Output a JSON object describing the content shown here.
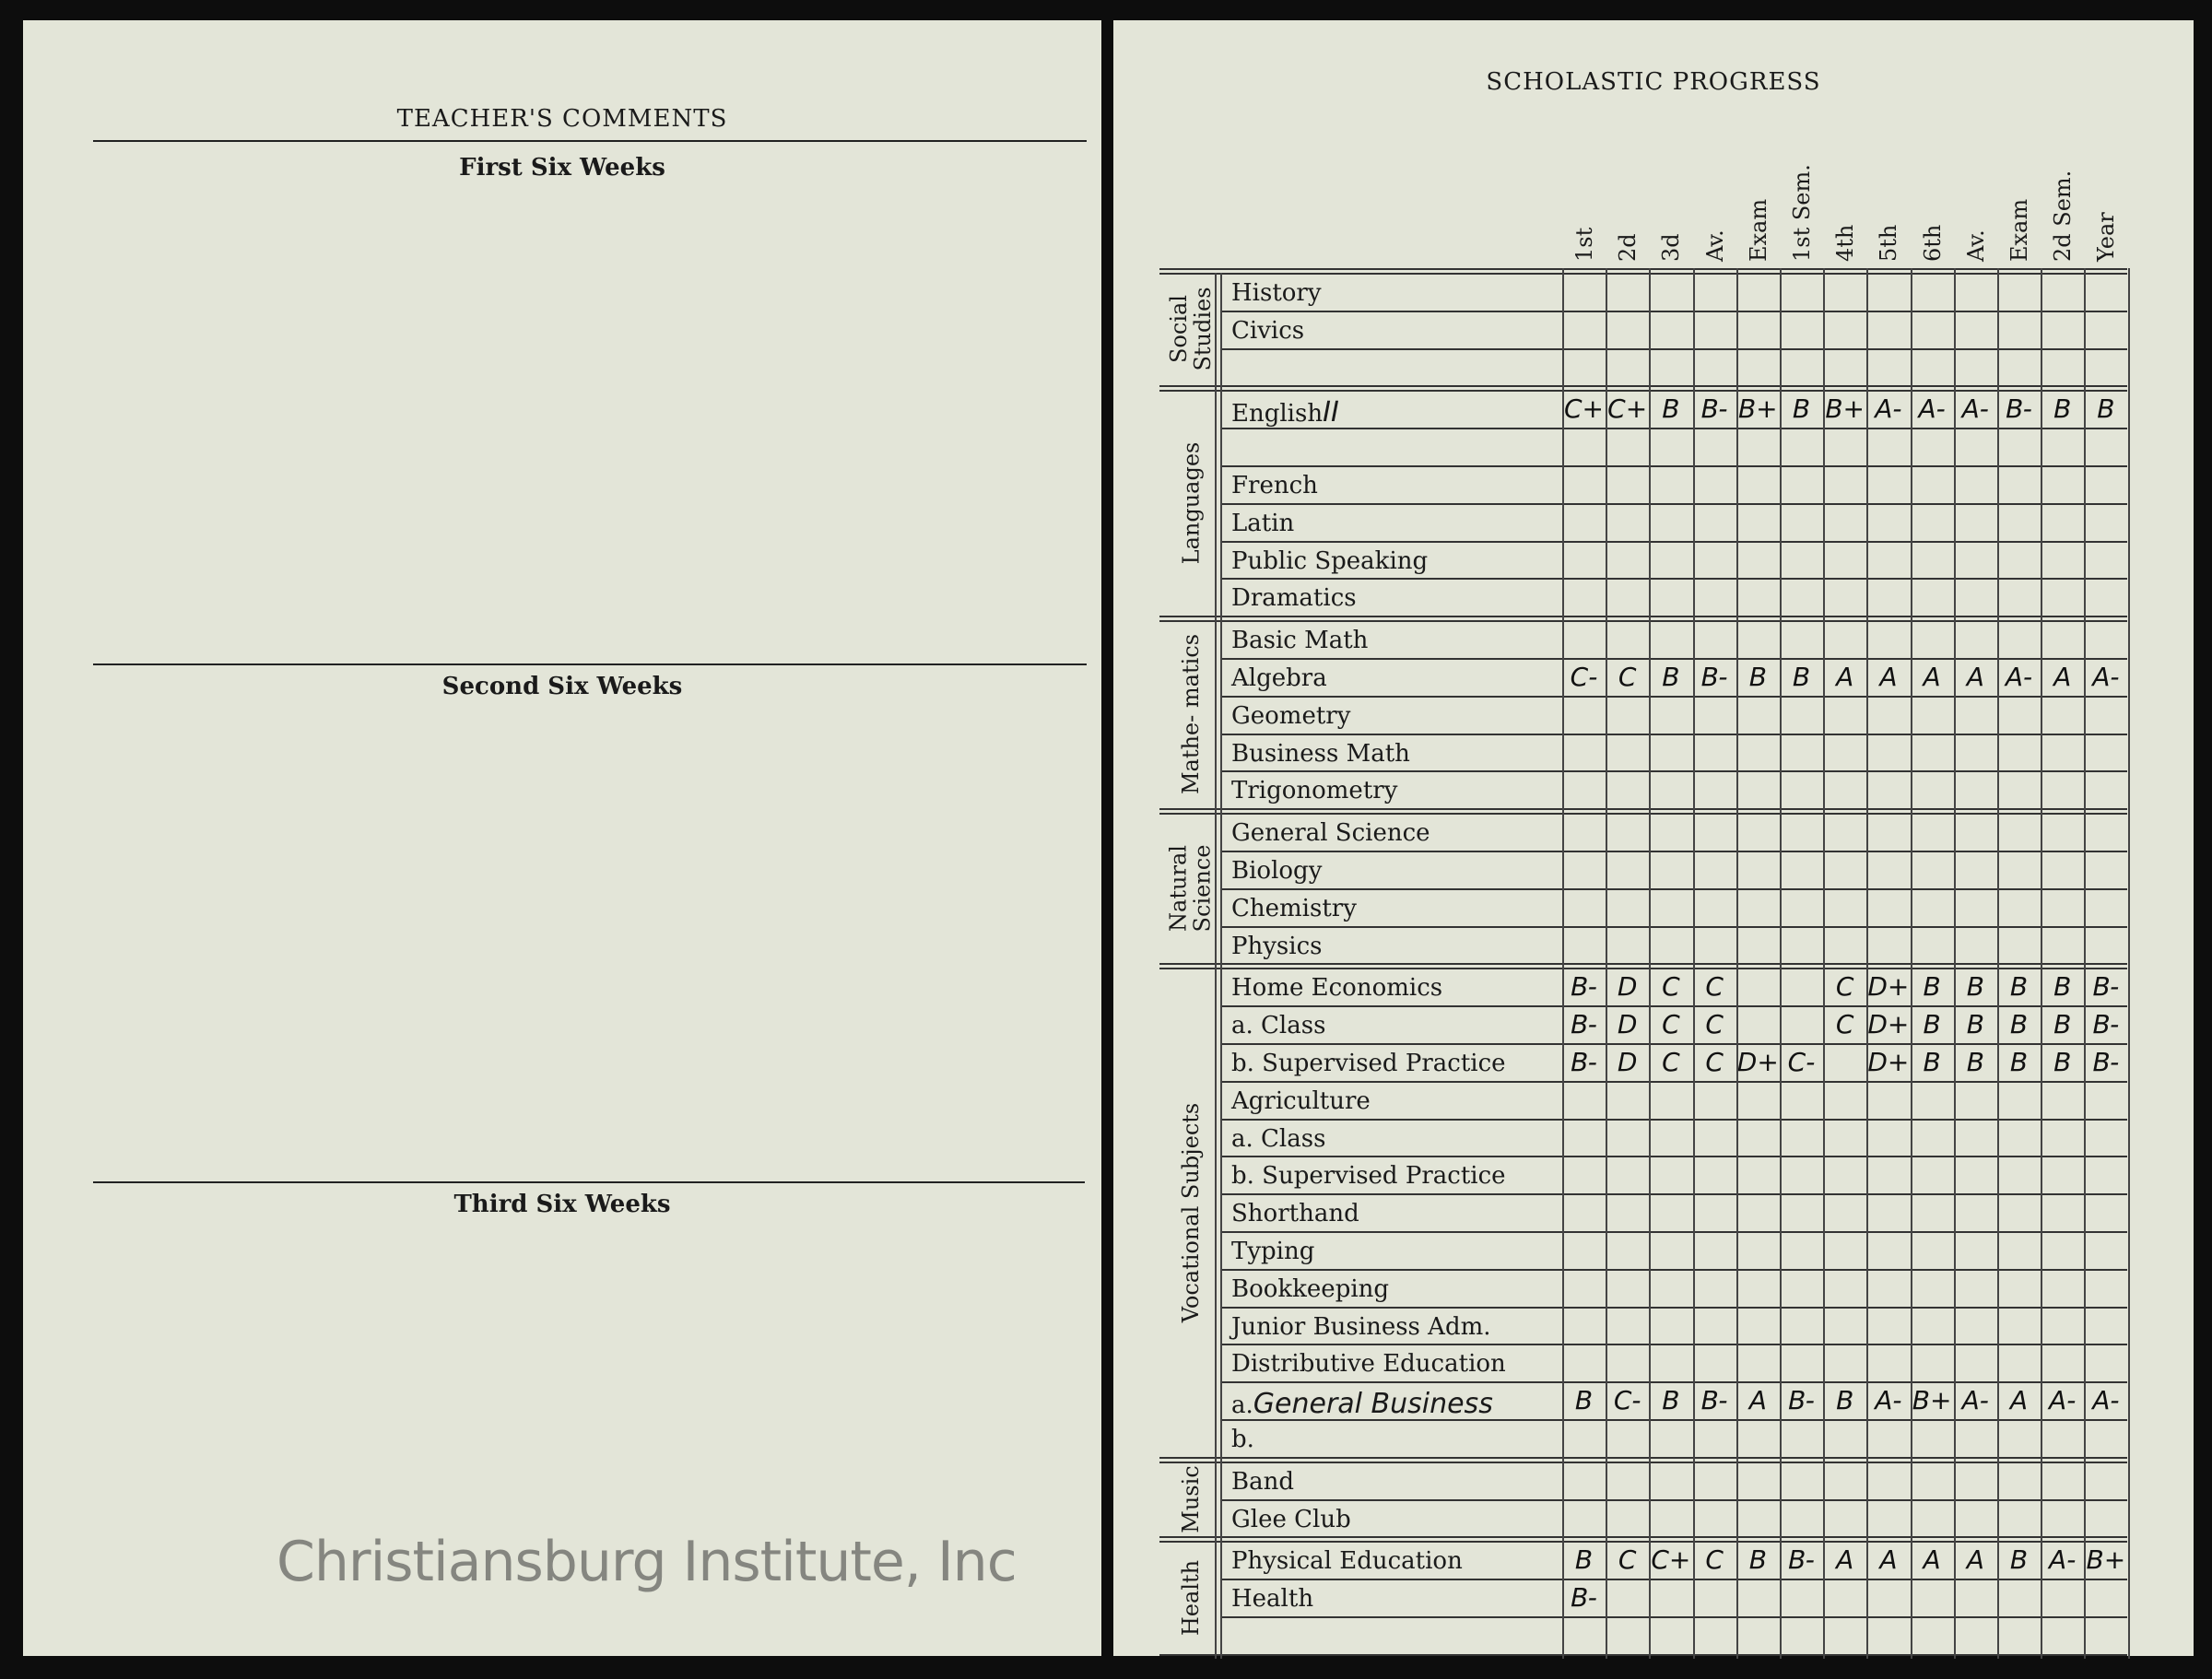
{
  "left_page": {
    "title": "TEACHER'S COMMENTS",
    "sections": [
      "First Six Weeks",
      "Second Six Weeks",
      "Third Six Weeks"
    ]
  },
  "right_page": {
    "title": "SCHOLASTIC PROGRESS",
    "columns": [
      "1st",
      "2d",
      "3d",
      "Av.",
      "Exam",
      "1st Sem.",
      "4th",
      "5th",
      "6th",
      "Av.",
      "Exam",
      "2d Sem.",
      "Year"
    ],
    "groups": [
      {
        "name": "Social Studies",
        "rows": [
          {
            "label": "History",
            "grades": [
              "",
              "",
              "",
              "",
              "",
              "",
              "",
              "",
              "",
              "",
              "",
              "",
              ""
            ]
          },
          {
            "label": "Civics",
            "grades": [
              "",
              "",
              "",
              "",
              "",
              "",
              "",
              "",
              "",
              "",
              "",
              "",
              ""
            ]
          },
          {
            "label": "",
            "grades": [
              "",
              "",
              "",
              "",
              "",
              "",
              "",
              "",
              "",
              "",
              "",
              "",
              ""
            ]
          }
        ]
      },
      {
        "name": "Languages",
        "rows": [
          {
            "label": "English",
            "handwritten": "II",
            "grades": [
              "C+",
              "C+",
              "B",
              "B-",
              "B+",
              "B",
              "B+",
              "A-",
              "A-",
              "A-",
              "B-",
              "B",
              "B"
            ]
          },
          {
            "label": "",
            "grades": [
              "",
              "",
              "",
              "",
              "",
              "",
              "",
              "",
              "",
              "",
              "",
              "",
              ""
            ]
          },
          {
            "label": "French",
            "grades": [
              "",
              "",
              "",
              "",
              "",
              "",
              "",
              "",
              "",
              "",
              "",
              "",
              ""
            ]
          },
          {
            "label": "Latin",
            "grades": [
              "",
              "",
              "",
              "",
              "",
              "",
              "",
              "",
              "",
              "",
              "",
              "",
              ""
            ]
          },
          {
            "label": "Public Speaking",
            "grades": [
              "",
              "",
              "",
              "",
              "",
              "",
              "",
              "",
              "",
              "",
              "",
              "",
              ""
            ]
          },
          {
            "label": "Dramatics",
            "grades": [
              "",
              "",
              "",
              "",
              "",
              "",
              "",
              "",
              "",
              "",
              "",
              "",
              ""
            ]
          }
        ]
      },
      {
        "name": "Mathe- matics",
        "rows": [
          {
            "label": "Basic Math",
            "grades": [
              "",
              "",
              "",
              "",
              "",
              "",
              "",
              "",
              "",
              "",
              "",
              "",
              ""
            ]
          },
          {
            "label": "Algebra",
            "grades": [
              "C-",
              "C",
              "B",
              "B-",
              "B",
              "B",
              "A",
              "A",
              "A",
              "A",
              "A-",
              "A",
              "A-"
            ]
          },
          {
            "label": "Geometry",
            "grades": [
              "",
              "",
              "",
              "",
              "",
              "",
              "",
              "",
              "",
              "",
              "",
              "",
              ""
            ]
          },
          {
            "label": "Business Math",
            "grades": [
              "",
              "",
              "",
              "",
              "",
              "",
              "",
              "",
              "",
              "",
              "",
              "",
              ""
            ]
          },
          {
            "label": "Trigonometry",
            "grades": [
              "",
              "",
              "",
              "",
              "",
              "",
              "",
              "",
              "",
              "",
              "",
              "",
              ""
            ]
          }
        ]
      },
      {
        "name": "Natural Science",
        "rows": [
          {
            "label": "General Science",
            "grades": [
              "",
              "",
              "",
              "",
              "",
              "",
              "",
              "",
              "",
              "",
              "",
              "",
              ""
            ]
          },
          {
            "label": "Biology",
            "grades": [
              "",
              "",
              "",
              "",
              "",
              "",
              "",
              "",
              "",
              "",
              "",
              "",
              ""
            ]
          },
          {
            "label": "Chemistry",
            "grades": [
              "",
              "",
              "",
              "",
              "",
              "",
              "",
              "",
              "",
              "",
              "",
              "",
              ""
            ]
          },
          {
            "label": "Physics",
            "grades": [
              "",
              "",
              "",
              "",
              "",
              "",
              "",
              "",
              "",
              "",
              "",
              "",
              ""
            ]
          }
        ]
      },
      {
        "name": "Vocational Subjects",
        "rows": [
          {
            "label": "Home Economics",
            "grades": [
              "B-",
              "D",
              "C",
              "C",
              "",
              "",
              "C",
              "D+",
              "B",
              "B",
              "B",
              "B",
              "B-"
            ]
          },
          {
            "label": "a.  Class",
            "grades": [
              "B-",
              "D",
              "C",
              "C",
              "",
              "",
              "C",
              "D+",
              "B",
              "B",
              "B",
              "B",
              "B-"
            ]
          },
          {
            "label": "b.  Supervised Practice",
            "grades": [
              "B-",
              "D",
              "C",
              "C",
              "D+",
              "C-",
              "",
              "D+",
              "B",
              "B",
              "B",
              "B",
              "B-"
            ]
          },
          {
            "label": "Agriculture",
            "grades": [
              "",
              "",
              "",
              "",
              "",
              "",
              "",
              "",
              "",
              "",
              "",
              "",
              ""
            ]
          },
          {
            "label": "a.  Class",
            "grades": [
              "",
              "",
              "",
              "",
              "",
              "",
              "",
              "",
              "",
              "",
              "",
              "",
              ""
            ]
          },
          {
            "label": "b.  Supervised Practice",
            "grades": [
              "",
              "",
              "",
              "",
              "",
              "",
              "",
              "",
              "",
              "",
              "",
              "",
              ""
            ]
          },
          {
            "label": "Shorthand",
            "grades": [
              "",
              "",
              "",
              "",
              "",
              "",
              "",
              "",
              "",
              "",
              "",
              "",
              ""
            ]
          },
          {
            "label": "Typing",
            "grades": [
              "",
              "",
              "",
              "",
              "",
              "",
              "",
              "",
              "",
              "",
              "",
              "",
              ""
            ]
          },
          {
            "label": "Bookkeeping",
            "grades": [
              "",
              "",
              "",
              "",
              "",
              "",
              "",
              "",
              "",
              "",
              "",
              "",
              ""
            ]
          },
          {
            "label": "Junior Business Adm.",
            "grades": [
              "",
              "",
              "",
              "",
              "",
              "",
              "",
              "",
              "",
              "",
              "",
              "",
              ""
            ]
          },
          {
            "label": "Distributive Education",
            "grades": [
              "",
              "",
              "",
              "",
              "",
              "",
              "",
              "",
              "",
              "",
              "",
              "",
              ""
            ]
          },
          {
            "label": "a.",
            "handwritten": "General Business",
            "grades": [
              "B",
              "C-",
              "B",
              "B-",
              "A",
              "B-",
              "B",
              "A-",
              "B+",
              "A-",
              "A",
              "A-",
              "A-"
            ]
          },
          {
            "label": "b.",
            "grades": [
              "",
              "",
              "",
              "",
              "",
              "",
              "",
              "",
              "",
              "",
              "",
              "",
              ""
            ]
          }
        ]
      },
      {
        "name": "Music",
        "rows": [
          {
            "label": "Band",
            "grades": [
              "",
              "",
              "",
              "",
              "",
              "",
              "",
              "",
              "",
              "",
              "",
              "",
              ""
            ]
          },
          {
            "label": "Glee Club",
            "grades": [
              "",
              "",
              "",
              "",
              "",
              "",
              "",
              "",
              "",
              "",
              "",
              "",
              ""
            ]
          }
        ]
      },
      {
        "name": "Health",
        "rows": [
          {
            "label": "Physical Education",
            "grades": [
              "B",
              "C",
              "C+",
              "C",
              "B",
              "B-",
              "A",
              "A",
              "A",
              "A",
              "B",
              "A-",
              "B+"
            ]
          },
          {
            "label": "Health",
            "grades": [
              "B-",
              "",
              "",
              "",
              "",
              "",
              "",
              "",
              "",
              "",
              "",
              "",
              ""
            ]
          },
          {
            "label": "",
            "grades": [
              "",
              "",
              "",
              "",
              "",
              "",
              "",
              "",
              "",
              "",
              "",
              "",
              ""
            ]
          }
        ]
      }
    ]
  },
  "watermark": "Christiansburg Institute, Inc"
}
